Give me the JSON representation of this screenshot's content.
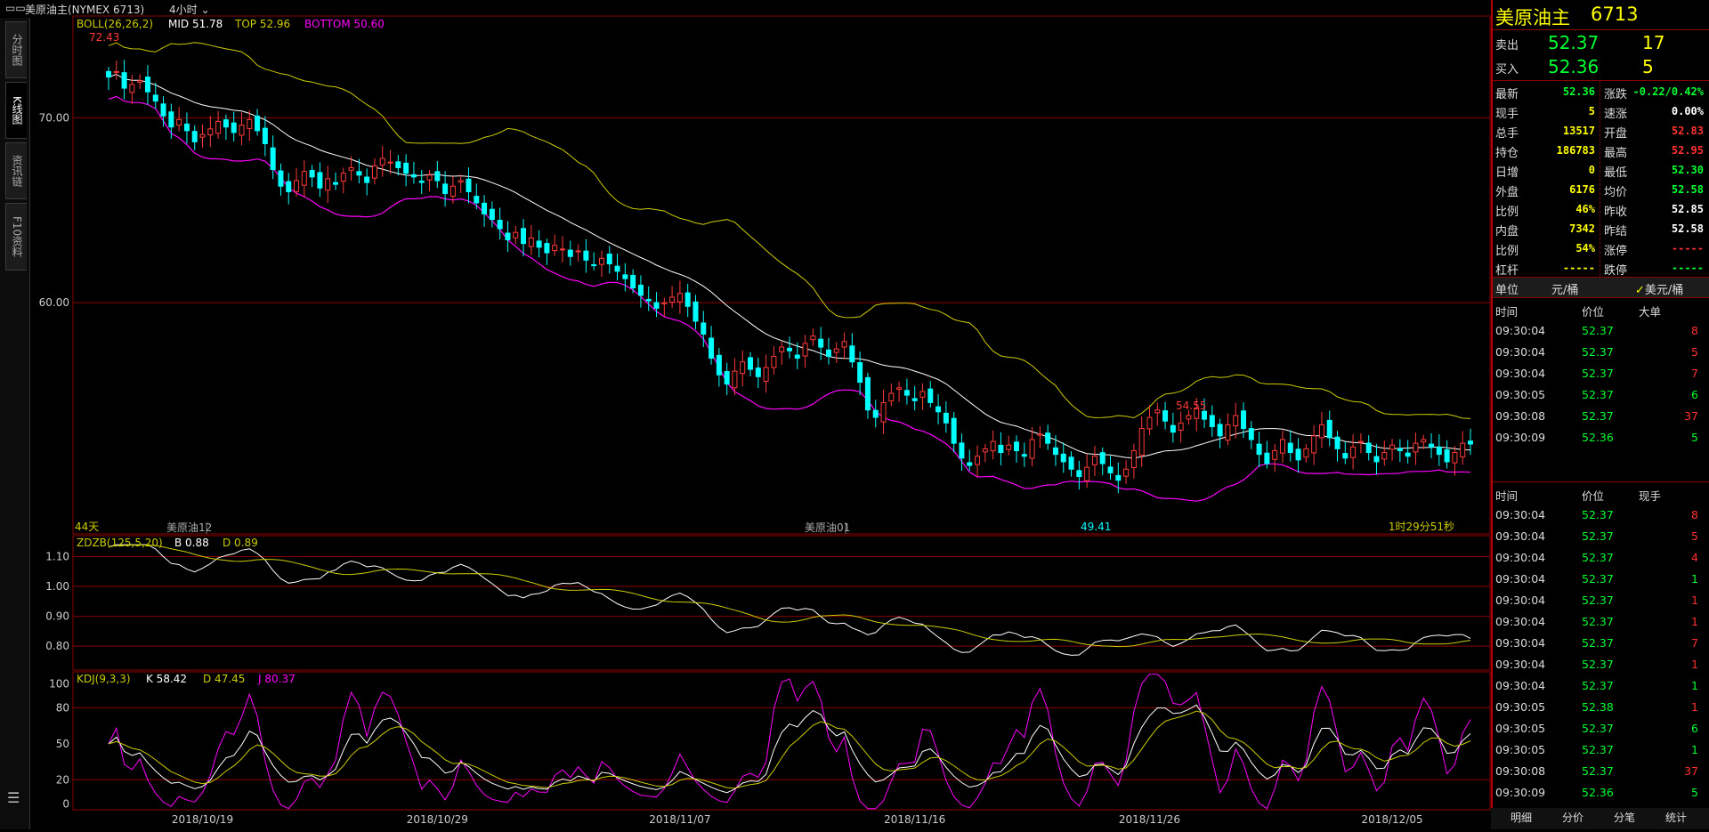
{
  "header": {
    "title": "美原油主(NYMEX 6713)",
    "period": "4小时"
  },
  "left_tabs": [
    "分时图",
    "K线图",
    "资讯链",
    "F10资料"
  ],
  "main": {
    "boll": {
      "label": "BOLL(26,26,2)",
      "mid": "MID 51.78",
      "top": "TOP 52.96",
      "bottom": "BOTTOM 50.60"
    },
    "y_ticks": [
      "70.00",
      "60.00"
    ],
    "annotations": {
      "high": "72.43",
      "mid_high": "54.55",
      "low": "49.41",
      "days": "44天",
      "contract1": "美原油12",
      "contract2": "美原油01",
      "countdown": "1时29分51秒"
    }
  },
  "zdzb": {
    "label": "ZDZB(125,5,20)",
    "b": "B 0.88",
    "d": "D 0.89",
    "y_ticks": [
      "1.10",
      "1.00",
      "0.90",
      "0.80"
    ]
  },
  "kdj": {
    "label": "KDJ(9,3,3)",
    "k": "K 58.42",
    "d": "D 47.45",
    "j": "J 80.37",
    "y_ticks": [
      "100",
      "80",
      "50",
      "20",
      "0"
    ]
  },
  "x_dates": [
    "2018/10/19",
    "2018/10/29",
    "2018/11/07",
    "2018/11/16",
    "2018/11/26",
    "2018/12/05"
  ],
  "colors": {
    "bull": "#ff3a3a",
    "bear": "#00ffff",
    "grid": "#8a0000",
    "mid": "#ffffff",
    "top": "#cccc00",
    "bottom": "#ff00ff"
  },
  "quote": {
    "name": "美原油主",
    "code": "6713",
    "sell": {
      "label": "卖出",
      "price": "52.37",
      "vol": "17"
    },
    "buy": {
      "label": "买入",
      "price": "52.36",
      "vol": "5"
    },
    "stats": [
      {
        "l1": "最新",
        "v1": "52.36",
        "c1": "grn",
        "l2": "涨跌",
        "v2": "-0.22/0.42%",
        "c2": "grn"
      },
      {
        "l1": "现手",
        "v1": "5",
        "c1": "yel",
        "l2": "速涨",
        "v2": "0.00%",
        "c2": "wht"
      },
      {
        "l1": "总手",
        "v1": "13517",
        "c1": "yel",
        "l2": "开盘",
        "v2": "52.83",
        "c2": "red"
      },
      {
        "l1": "持仓",
        "v1": "186783",
        "c1": "yel",
        "l2": "最高",
        "v2": "52.95",
        "c2": "red"
      },
      {
        "l1": "日增",
        "v1": "0",
        "c1": "yel",
        "l2": "最低",
        "v2": "52.30",
        "c2": "grn"
      },
      {
        "l1": "外盘",
        "v1": "6176",
        "c1": "yel",
        "l2": "均价",
        "v2": "52.58",
        "c2": "grn"
      },
      {
        "l1": "比例",
        "v1": "46%",
        "c1": "yel",
        "l2": "昨收",
        "v2": "52.85",
        "c2": "wht"
      },
      {
        "l1": "内盘",
        "v1": "7342",
        "c1": "yel",
        "l2": "昨结",
        "v2": "52.58",
        "c2": "wht"
      },
      {
        "l1": "比例",
        "v1": "54%",
        "c1": "yel",
        "l2": "涨停",
        "v2": "-----",
        "c2": "red"
      },
      {
        "l1": "杠杆",
        "v1": "-----",
        "c1": "yel",
        "l2": "跌停",
        "v2": "-----",
        "c2": "grn"
      }
    ],
    "unit_label": "单位",
    "unit_value": "元/桶",
    "unit_alt": "美元/桶"
  },
  "big_orders": {
    "headers": [
      "时间",
      "价位",
      "大单"
    ],
    "rows": [
      {
        "t": "09:30:04",
        "p": "52.37",
        "v": "8",
        "vc": "red"
      },
      {
        "t": "09:30:04",
        "p": "52.37",
        "v": "5",
        "vc": "red"
      },
      {
        "t": "09:30:04",
        "p": "52.37",
        "v": "7",
        "vc": "red"
      },
      {
        "t": "09:30:05",
        "p": "52.37",
        "v": "6",
        "vc": "grn"
      },
      {
        "t": "09:30:08",
        "p": "52.37",
        "v": "37",
        "vc": "red"
      },
      {
        "t": "09:30:09",
        "p": "52.36",
        "v": "5",
        "vc": "grn"
      }
    ]
  },
  "ticks": {
    "headers": [
      "时间",
      "价位",
      "现手"
    ],
    "rows": [
      {
        "t": "09:30:04",
        "p": "52.37",
        "v": "8",
        "vc": "red"
      },
      {
        "t": "09:30:04",
        "p": "52.37",
        "v": "5",
        "vc": "red"
      },
      {
        "t": "09:30:04",
        "p": "52.37",
        "v": "4",
        "vc": "red"
      },
      {
        "t": "09:30:04",
        "p": "52.37",
        "v": "1",
        "vc": "grn"
      },
      {
        "t": "09:30:04",
        "p": "52.37",
        "v": "1",
        "vc": "red"
      },
      {
        "t": "09:30:04",
        "p": "52.37",
        "v": "1",
        "vc": "red"
      },
      {
        "t": "09:30:04",
        "p": "52.37",
        "v": "7",
        "vc": "red"
      },
      {
        "t": "09:30:04",
        "p": "52.37",
        "v": "1",
        "vc": "red"
      },
      {
        "t": "09:30:04",
        "p": "52.37",
        "v": "1",
        "vc": "grn"
      },
      {
        "t": "09:30:05",
        "p": "52.38",
        "v": "1",
        "vc": "red"
      },
      {
        "t": "09:30:05",
        "p": "52.37",
        "v": "6",
        "vc": "grn"
      },
      {
        "t": "09:30:05",
        "p": "52.37",
        "v": "1",
        "vc": "grn"
      },
      {
        "t": "09:30:08",
        "p": "52.37",
        "v": "37",
        "vc": "red"
      },
      {
        "t": "09:30:09",
        "p": "52.36",
        "v": "5",
        "vc": "grn"
      }
    ]
  },
  "bottom_tabs": [
    "明细",
    "分价",
    "分笔",
    "统计"
  ],
  "chart_data": {
    "type": "candlestick",
    "closes": [
      72.2,
      72.5,
      71.6,
      71.8,
      72.0,
      71.4,
      70.9,
      70.1,
      69.5,
      69.9,
      69.3,
      68.7,
      69.1,
      69.4,
      69.8,
      69.5,
      69.2,
      69.6,
      69.9,
      69.3,
      68.6,
      67.2,
      66.3,
      66.0,
      66.6,
      67.1,
      66.8,
      66.2,
      66.7,
      66.4,
      67.0,
      67.3,
      66.9,
      66.5,
      67.4,
      67.8,
      67.6,
      67.3,
      67.0,
      66.8,
      66.5,
      66.9,
      66.6,
      65.9,
      66.3,
      66.6,
      66.0,
      65.4,
      64.8,
      64.5,
      64.0,
      63.4,
      63.8,
      63.2,
      63.5,
      63.0,
      62.7,
      63.1,
      62.9,
      62.5,
      62.8,
      62.3,
      62.0,
      62.4,
      62.1,
      61.7,
      61.3,
      60.8,
      60.4,
      60.1,
      59.7,
      60.0,
      60.3,
      60.5,
      59.8,
      59.0,
      58.3,
      57.0,
      56.1,
      55.6,
      56.3,
      56.8,
      56.4,
      56.0,
      56.5,
      57.1,
      57.6,
      57.4,
      57.0,
      57.8,
      58.2,
      57.6,
      57.1,
      57.5,
      57.9,
      56.8,
      55.7,
      54.2,
      53.8,
      54.6,
      55.1,
      55.4,
      55.0,
      54.7,
      55.2,
      54.6,
      54.1,
      53.5,
      52.4,
      51.6,
      51.2,
      51.7,
      52.1,
      52.5,
      51.9,
      52.3,
      52.0,
      51.7,
      52.6,
      52.9,
      52.4,
      51.8,
      51.4,
      51.0,
      50.6,
      51.1,
      51.7,
      51.3,
      50.8,
      50.4,
      51.0,
      52.0,
      53.2,
      53.8,
      54.2,
      53.6,
      53.0,
      53.5,
      53.9,
      54.3,
      53.7,
      53.3,
      52.8,
      53.4,
      53.9,
      53.2,
      52.6,
      51.8,
      51.3,
      52.0,
      52.6,
      51.9,
      51.5,
      52.1,
      52.8,
      53.4,
      52.7,
      52.1,
      51.6,
      52.2,
      52.5,
      51.9,
      51.4,
      51.9,
      52.3,
      52.0,
      51.7,
      52.4,
      52.6,
      52.2,
      51.8,
      51.4,
      51.9,
      52.4,
      52.36
    ],
    "y_range": [
      47.5,
      75.5
    ],
    "zdzb_range": [
      0.72,
      1.17
    ],
    "kdj_range": [
      -5,
      110
    ],
    "kdj_ticks": [
      100,
      80,
      50,
      20,
      0
    ]
  }
}
